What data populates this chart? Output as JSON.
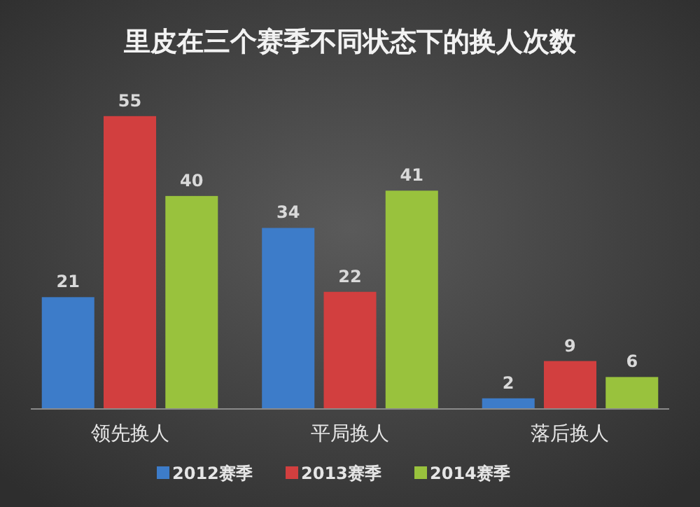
{
  "chart_data": {
    "type": "bar",
    "title": "里皮在三个赛季不同状态下的换人次数",
    "categories": [
      "领先换人",
      "平局换人",
      "落后换人"
    ],
    "series": [
      {
        "name": "2012赛季",
        "color": "#3d7cc9",
        "values": [
          21,
          34,
          2
        ]
      },
      {
        "name": "2013赛季",
        "color": "#d23f3f",
        "values": [
          55,
          22,
          9
        ]
      },
      {
        "name": "2014赛季",
        "color": "#99c23d",
        "values": [
          40,
          41,
          6
        ]
      }
    ],
    "data_labels": true,
    "legend": "bottom"
  }
}
